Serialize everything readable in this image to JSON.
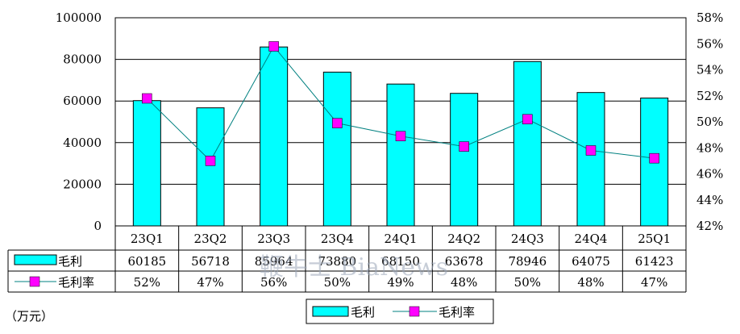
{
  "chart_data": {
    "type": "bar-line",
    "categories": [
      "23Q1",
      "23Q2",
      "23Q3",
      "23Q4",
      "24Q1",
      "24Q2",
      "24Q3",
      "24Q4",
      "25Q1"
    ],
    "series": [
      {
        "name": "毛利",
        "type": "bar",
        "axis": "left",
        "color": "#00FFFF",
        "values": [
          60185,
          56718,
          85964,
          73880,
          68150,
          63678,
          78946,
          64075,
          61423
        ],
        "labels": [
          "60185",
          "56718",
          "85964",
          "73880",
          "68150",
          "63678",
          "78946",
          "64075",
          "61423"
        ]
      },
      {
        "name": "毛利率",
        "type": "line",
        "axis": "right",
        "color": "#008080",
        "marker_color": "#FF00FF",
        "values": [
          51.8,
          47.0,
          55.8,
          49.9,
          48.9,
          48.1,
          50.2,
          47.8,
          47.2
        ],
        "labels": [
          "52%",
          "47%",
          "56%",
          "50%",
          "49%",
          "48%",
          "50%",
          "48%",
          "47%"
        ]
      }
    ],
    "y_left": {
      "min": 0,
      "max": 100000,
      "ticks": [
        "0",
        "20000",
        "40000",
        "60000",
        "80000",
        "100000"
      ]
    },
    "y_right": {
      "min": 42,
      "max": 58,
      "ticks": [
        "42%",
        "44%",
        "46%",
        "48%",
        "50%",
        "52%",
        "54%",
        "56%",
        "58%"
      ]
    },
    "unit_label": "（万元）",
    "legend": {
      "position": "bottom-center",
      "entries": [
        "毛利",
        "毛利率"
      ]
    },
    "grid": true,
    "data_table": true,
    "watermark": "鞭牛士 BiaNews"
  }
}
